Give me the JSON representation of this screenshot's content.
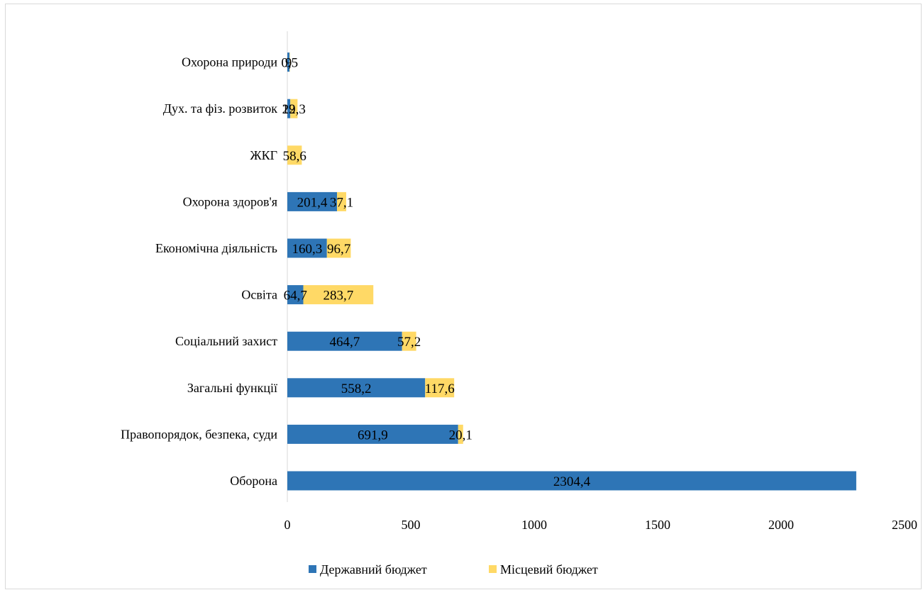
{
  "chart_data": {
    "type": "bar",
    "orientation": "horizontal",
    "stacked": true,
    "categories": [
      "Оборона",
      "Правопорядок, безпека, суди",
      "Загальні функції",
      "Соціальний захист",
      "Освіта",
      "Економічна діяльність",
      "Охорона здоров'я",
      "ЖКГ",
      "Дух. та фіз. розвиток",
      "Охорона природи"
    ],
    "series": [
      {
        "name": "Державний бюджет",
        "color": "#2e75b6",
        "values": [
          2304.4,
          691.9,
          558.2,
          464.7,
          64.7,
          160.3,
          201.4,
          0,
          12,
          9
        ],
        "labels": [
          "2304,4",
          "691,9",
          "558,2",
          "464,7",
          "64,7",
          "160,3",
          "201,4",
          "",
          "12",
          "9"
        ]
      },
      {
        "name": "Місцевий бюджет",
        "color": "#ffd966",
        "values": [
          0,
          20.1,
          117.6,
          57.2,
          283.7,
          96.7,
          37.1,
          58.6,
          29.3,
          0.5
        ],
        "labels": [
          "",
          "20,1",
          "117,6",
          "57,2",
          "283,7",
          "96,7",
          "37,1",
          "58,6",
          "29,3",
          "0,5"
        ]
      }
    ],
    "xlim": [
      0,
      2500
    ],
    "x_ticks": [
      "0",
      "500",
      "1000",
      "1500",
      "2000",
      "2500"
    ],
    "grid": false,
    "legend_position": "bottom"
  }
}
